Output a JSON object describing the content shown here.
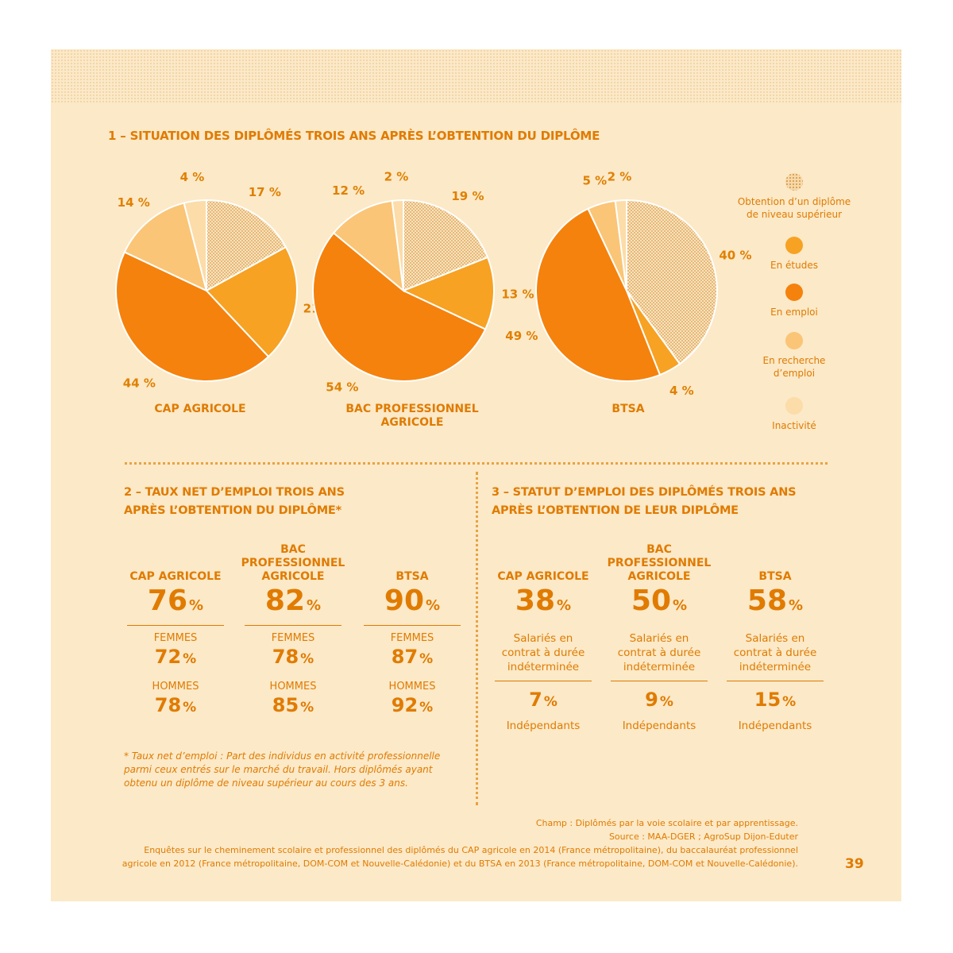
{
  "section1": {
    "title": "1 – SITUATION DES DIPLÔMÉS TROIS ANS APRÈS L’OBTENTION DU DIPLÔME"
  },
  "legend": [
    {
      "label": "Obtention d’un diplôme de niveau supérieur",
      "color": "#f5d9aa",
      "pattern": "dots"
    },
    {
      "label": "En études",
      "color": "#f7a223"
    },
    {
      "label": "En emploi",
      "color": "#f5820c"
    },
    {
      "label": "En recherche d’emploi",
      "color": "#fac576"
    },
    {
      "label": "Inactivité",
      "color": "#fcdca8"
    }
  ],
  "chart_data": [
    {
      "type": "pie",
      "title": "CAP AGRICOLE",
      "categories": [
        "Obtention d’un diplôme de niveau supérieur",
        "En études",
        "En emploi",
        "En recherche d’emploi",
        "Inactivité"
      ],
      "values": [
        17,
        21,
        44,
        14,
        4
      ],
      "labels": [
        "17 %",
        "21 %",
        "44 %",
        "14 %",
        "4 %"
      ]
    },
    {
      "type": "pie",
      "title": "BAC PROFESSIONNEL AGRICOLE",
      "categories": [
        "Obtention d’un diplôme de niveau supérieur",
        "En études",
        "En emploi",
        "En recherche d’emploi",
        "Inactivité"
      ],
      "values": [
        19,
        13,
        54,
        12,
        2
      ],
      "labels": [
        "19 %",
        "13 %",
        "54 %",
        "12 %",
        "2 %"
      ]
    },
    {
      "type": "pie",
      "title": "BTSA",
      "categories": [
        "Obtention d’un diplôme de niveau supérieur",
        "En études",
        "En emploi",
        "En recherche d’emploi",
        "Inactivité"
      ],
      "values": [
        40,
        4,
        49,
        5,
        2
      ],
      "labels": [
        "40 %",
        "4 %",
        "49 %",
        "5 %",
        "2 %"
      ]
    }
  ],
  "section2": {
    "title_line1": "2 – TAUX NET D’EMPLOI TROIS ANS",
    "title_line2": "APRÈS L’OBTENTION DU DIPLÔME*",
    "columns": [
      {
        "title": "CAP AGRICOLE",
        "value": "76",
        "women_label": "FEMMES",
        "women": "72",
        "men_label": "HOMMES",
        "men": "78"
      },
      {
        "title": "BAC PROFESSIONNEL AGRICOLE",
        "value": "82",
        "women_label": "FEMMES",
        "women": "78",
        "men_label": "HOMMES",
        "men": "85"
      },
      {
        "title": "BTSA",
        "value": "90",
        "women_label": "FEMMES",
        "women": "87",
        "men_label": "HOMMES",
        "men": "92"
      }
    ],
    "unit": "%",
    "footnote": "* Taux net d’emploi : Part des individus en activité professionnelle parmi ceux entrés sur le marché du travail. Hors diplômés ayant obtenu un diplôme de niveau supérieur au cours des 3 ans."
  },
  "section3": {
    "title_line1": "3 – STATUT D’EMPLOI DES DIPLÔMÉS TROIS ANS",
    "title_line2": "APRÈS L’OBTENTION DE LEUR DIPLÔME",
    "columns": [
      {
        "title": "CAP AGRICOLE",
        "cdi": "38",
        "cdi_label": "Salariés en contrat à durée indéterminée",
        "indep": "7",
        "indep_label": "Indépendants"
      },
      {
        "title": "BAC PROFESSIONNEL AGRICOLE",
        "cdi": "50",
        "cdi_label": "Salariés en contrat à durée indéterminée",
        "indep": "9",
        "indep_label": "Indépendants"
      },
      {
        "title": "BTSA",
        "cdi": "58",
        "cdi_label": "Salariés en contrat à durée indéterminée",
        "indep": "15",
        "indep_label": "Indépendants"
      }
    ],
    "unit": "%"
  },
  "source": {
    "line1": "Champ : Diplômés par la voie scolaire et par apprentissage.",
    "line2": "Source : MAA-DGER ; AgroSup Dijon-Eduter",
    "line3": "Enquêtes sur le cheminement scolaire et professionnel des diplômés du CAP agricole en 2014 (France métropolitaine), du baccalauréat professionnel",
    "line4": "agricole en 2012 (France métropolitaine, DOM-COM et Nouvelle-Calédonie) et du BTSA en 2013 (France métropolitaine, DOM-COM et Nouvelle-Calédonie)."
  },
  "page_number": "39"
}
